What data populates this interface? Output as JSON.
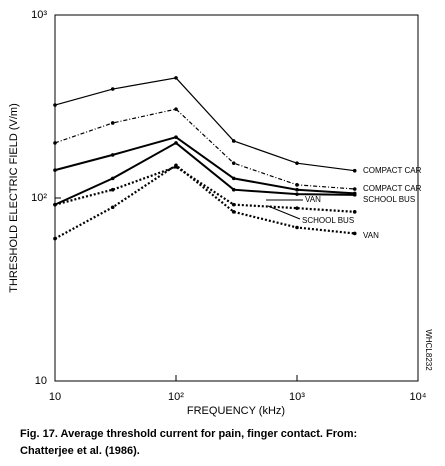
{
  "chart_data": {
    "type": "line",
    "x_label": "FREQUENCY (kHz)",
    "y_label": "THRESHOLD ELECTRIC FIELD (V/m)",
    "x": [
      10,
      30,
      100,
      300,
      1000,
      3000
    ],
    "xscale": "log",
    "yscale": "log",
    "xlim": [
      10,
      10000
    ],
    "ylim": [
      10,
      1000
    ],
    "xticks": [
      10,
      {
        "value": 100,
        "label": "10²"
      },
      {
        "value": 1000,
        "label": "10³"
      },
      {
        "value": 10000,
        "label": "10⁴"
      }
    ],
    "yticks": [
      10,
      {
        "value": 100,
        "label": "10²"
      },
      {
        "value": 1000,
        "label": "10³"
      }
    ],
    "series": [
      {
        "name": "COMPACT CAR",
        "color": "#000000",
        "style": "solid",
        "values": [
          322,
          394,
          453,
          205,
          155,
          141
        ]
      },
      {
        "name": "COMPACT CAR",
        "color": "#000000",
        "style": "dashdot",
        "values": [
          200,
          257,
          306,
          155,
          118,
          112
        ]
      },
      {
        "name": "VAN",
        "color": "#000000",
        "style": "thick",
        "values": [
          142,
          172,
          215,
          128,
          111,
          106
        ]
      },
      {
        "name": "SCHOOL BUS",
        "color": "#000000",
        "style": "thick",
        "values": [
          92,
          128,
          200,
          111,
          105,
          104
        ]
      },
      {
        "name": "SCHOOL BUS",
        "color": "#000000",
        "style": "dotted",
        "values": [
          92,
          111,
          148,
          92,
          88,
          84
        ]
      },
      {
        "name": "VAN",
        "color": "#000000",
        "style": "dotted",
        "values": [
          60,
          89,
          151,
          84,
          69,
          64
        ]
      }
    ],
    "side_note": "WHCL8232",
    "caption": [
      "Fig. 17.  Average threshold current for pain, finger contact.  From:",
      "Chatterjee et al. (1986)."
    ]
  }
}
